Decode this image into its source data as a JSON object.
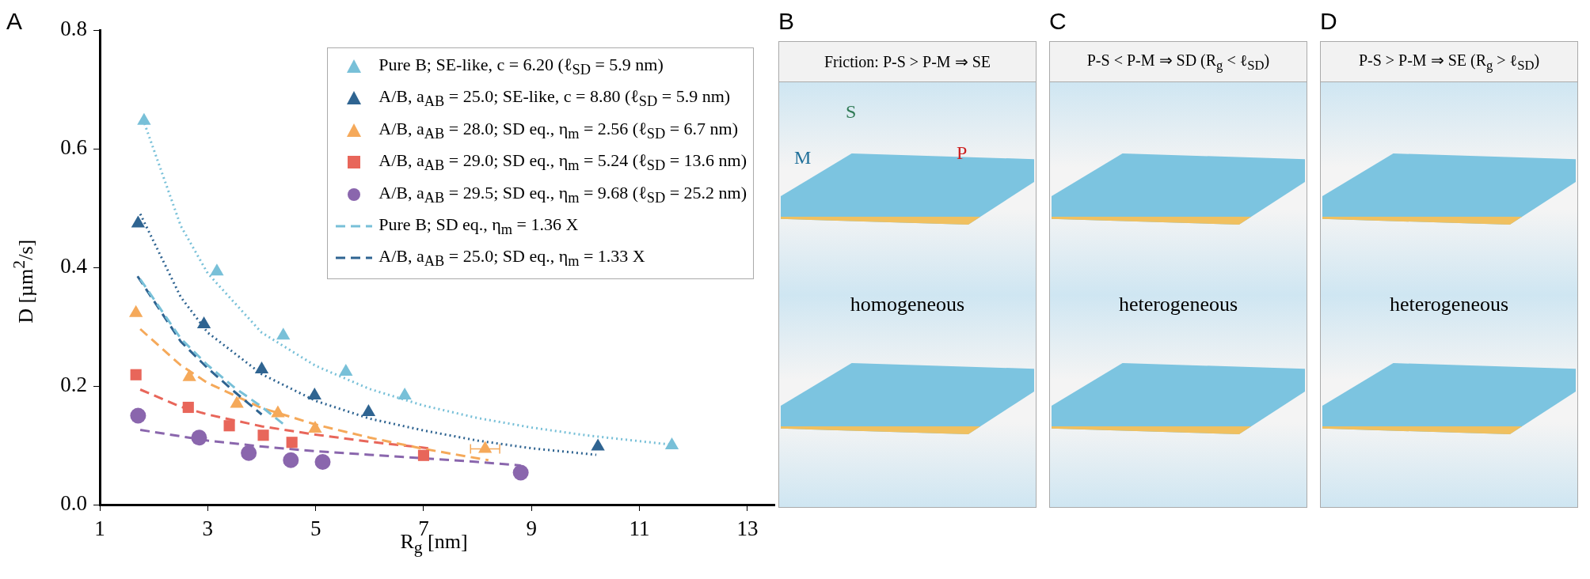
{
  "chart_data": [
    {
      "type": "scatter",
      "xlabel": "R$_{g}$ [nm]",
      "ylabel": "D [µm$^{2}$/s]",
      "annotations": [
        "A"
      ],
      "xlim": [
        1,
        13.5
      ],
      "ylim": [
        0,
        0.8
      ],
      "xticks": [
        1,
        3,
        5,
        7,
        9,
        11,
        13
      ],
      "yticks": [
        {
          "value": 0,
          "label": "0.0"
        },
        {
          "value": 0.2,
          "label": "0.2"
        },
        {
          "value": 0.4,
          "label": "0.4"
        },
        {
          "value": 0.6,
          "label": "0.6"
        },
        {
          "value": 0.8,
          "label": "0.8"
        }
      ],
      "legend": "top right",
      "series": [
        {
          "name": "Pure B; SE-like, c = 6.20 (ℓ$_{SD}$ = 5.9 nm)",
          "color": "#78c0d8",
          "marker": "triangle",
          "x": [
            1.82,
            3.17,
            4.4,
            5.56,
            6.65,
            11.6
          ],
          "values": [
            0.647,
            0.393,
            0.285,
            0.224,
            0.184,
            0.1
          ]
        },
        {
          "name": "A/B, a$_{AB}$ = 25.0; SE-like, c = 8.80 (ℓ$_{SD}$ = 5.9 nm)",
          "color": "#2f6491",
          "marker": "triangle",
          "x": [
            1.71,
            2.93,
            4.0,
            4.98,
            5.98,
            10.23
          ],
          "values": [
            0.474,
            0.304,
            0.228,
            0.184,
            0.156,
            0.098
          ]
        },
        {
          "name": "A/B, a$_{AB}$ = 28.0; SD eq., η$_{m}$ = 2.56 (ℓ$_{SD}$ = 6.7 nm)",
          "color": "#f5a95a",
          "marker": "triangle",
          "x": [
            1.67,
            2.66,
            3.54,
            4.3,
            4.99,
            8.14
          ],
          "values": [
            0.323,
            0.215,
            0.17,
            0.154,
            0.128,
            0.094
          ],
          "xerrors": [
            null,
            null,
            null,
            null,
            null,
            0.27
          ]
        },
        {
          "name": "A/B, a$_{AB}$ = 29.0; SD eq., η$_{m}$ = 5.24 (ℓ$_{SD}$ = 13.6 nm)",
          "color": "#e8665a",
          "marker": "square",
          "x": [
            1.67,
            2.64,
            3.4,
            4.03,
            4.56,
            7.0
          ],
          "values": [
            0.219,
            0.164,
            0.133,
            0.117,
            0.105,
            0.083
          ]
        },
        {
          "name": "A/B, a$_{AB}$ = 29.5; SD eq., η$_{m}$ = 9.68 (ℓ$_{SD}$ = 25.2 nm)",
          "color": "#8a66ad",
          "marker": "circle",
          "x": [
            1.71,
            2.84,
            3.76,
            4.54,
            5.13,
            8.8
          ],
          "values": [
            0.15,
            0.113,
            0.087,
            0.075,
            0.072,
            0.054
          ]
        },
        {
          "name": "Pure B; SD eq., η$_{m}$ = 1.36 X",
          "color": "#78c0d8",
          "type": "line",
          "line_style": "dashed",
          "x": [
            1.75,
            2.5,
            3,
            3.5,
            4,
            4.4
          ],
          "values": [
            0.38,
            0.28,
            0.235,
            0.197,
            0.165,
            0.136
          ]
        },
        {
          "name": "A/B, a$_{AB}$ = 25.0; SD eq., η$_{m}$ = 1.33 X",
          "color": "#2f6491",
          "type": "line",
          "line_style": "dashed",
          "x": [
            1.7,
            2.5,
            3,
            3.5,
            4
          ],
          "values": [
            0.385,
            0.275,
            0.23,
            0.19,
            0.152
          ]
        },
        {
          "color": "#78c0d8",
          "type": "line",
          "line_style": "dotted",
          "x": [
            1.8,
            2.5,
            3,
            4,
            5,
            6,
            7,
            8,
            9,
            10,
            11.6
          ],
          "values": [
            0.65,
            0.47,
            0.39,
            0.29,
            0.234,
            0.195,
            0.167,
            0.146,
            0.13,
            0.117,
            0.101
          ]
        },
        {
          "color": "#2f6491",
          "type": "line",
          "line_style": "dotted",
          "x": [
            1.75,
            2.5,
            3,
            4,
            5,
            6,
            7,
            8,
            9,
            10.2
          ],
          "values": [
            0.49,
            0.35,
            0.29,
            0.22,
            0.175,
            0.145,
            0.125,
            0.108,
            0.095,
            0.084
          ]
        },
        {
          "color": "#f5a95a",
          "type": "line",
          "line_style": "dashed",
          "x": [
            1.75,
            2.5,
            3,
            4,
            5,
            6,
            7,
            8.2
          ],
          "values": [
            0.296,
            0.235,
            0.205,
            0.163,
            0.135,
            0.113,
            0.094,
            0.075
          ]
        },
        {
          "color": "#e8665a",
          "type": "line",
          "line_style": "dashed",
          "x": [
            1.75,
            2.5,
            3,
            4,
            5,
            6,
            7.1
          ],
          "values": [
            0.194,
            0.165,
            0.152,
            0.132,
            0.118,
            0.106,
            0.095
          ]
        },
        {
          "color": "#8a66ad",
          "type": "line",
          "line_style": "dashed",
          "x": [
            1.75,
            3,
            4,
            5,
            6,
            7,
            8,
            8.8
          ],
          "values": [
            0.126,
            0.108,
            0.098,
            0.09,
            0.084,
            0.078,
            0.072,
            0.066
          ]
        }
      ]
    },
    {
      "type": "other",
      "title": "Friction: P-S > P-M ⇒ SE",
      "annotations": [
        "B",
        "S",
        "M",
        "P",
        "homogeneous"
      ]
    },
    {
      "type": "other",
      "title": "P-S < P-M ⇒ SD (R$_{g}$ < ℓ$_{SD}$)",
      "annotations": [
        "C",
        "heterogeneous"
      ]
    },
    {
      "type": "other",
      "title": "P-S > P-M ⇒ SE (R$_{g}$ > ℓ$_{SD}$)",
      "annotations": [
        "D",
        "heterogeneous"
      ]
    }
  ]
}
